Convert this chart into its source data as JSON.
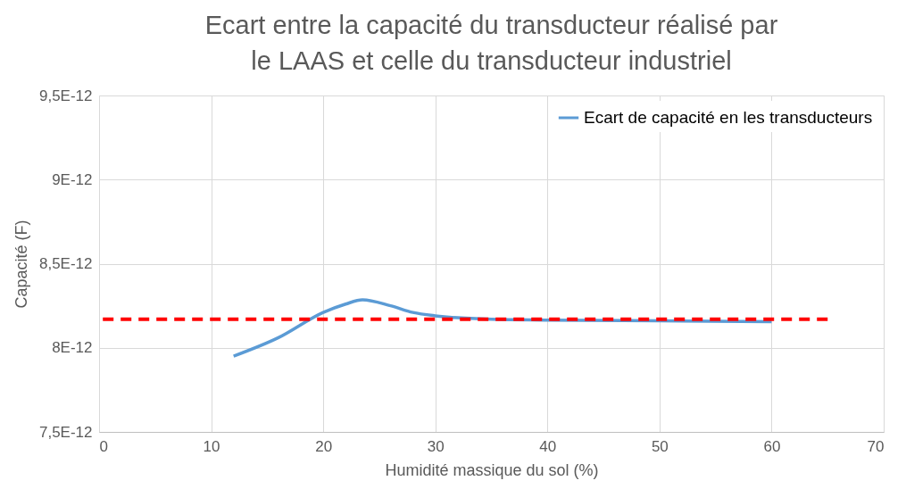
{
  "chart_data": {
    "type": "line",
    "title": "Ecart entre la capacité du transducteur réalisé par le LAAS et celle du transducteur industriel",
    "xlabel": "Humidité massique du sol (%)",
    "ylabel": "Capacité (F)",
    "series": [
      {
        "name": "Ecart de capacité en les transducteurs",
        "color": "#5b9bd5",
        "x": [
          12,
          16,
          20,
          22,
          23.5,
          26,
          28,
          30,
          35,
          40,
          50,
          60
        ],
        "values": [
          7.95e-12,
          8.06e-12,
          8.21e-12,
          8.26e-12,
          8.285e-12,
          8.25e-12,
          8.21e-12,
          8.19e-12,
          8.17e-12,
          8.165e-12,
          8.16e-12,
          8.155e-12
        ]
      },
      {
        "type": "line",
        "color": "#ff0000",
        "line_style": "dashed",
        "x": [
          0,
          65
        ],
        "values": [
          8.17e-12,
          8.17e-12
        ]
      }
    ],
    "xlim": [
      0,
      70
    ],
    "xticks": [
      0,
      10,
      20,
      30,
      40,
      50,
      60,
      70
    ],
    "ylim": [
      7.5e-12,
      9.5e-12
    ],
    "yticks": [
      {
        "value": 7.5e-12,
        "label": "7,5E-12"
      },
      {
        "value": 8e-12,
        "label": "8E-12"
      },
      {
        "value": 8.5e-12,
        "label": "8,5E-12"
      },
      {
        "value": 9e-12,
        "label": "9E-12"
      },
      {
        "value": 9.5e-12,
        "label": "9,5E-12"
      }
    ],
    "grid": true,
    "legend": "top right",
    "marker": "none",
    "line_style": "solid"
  }
}
